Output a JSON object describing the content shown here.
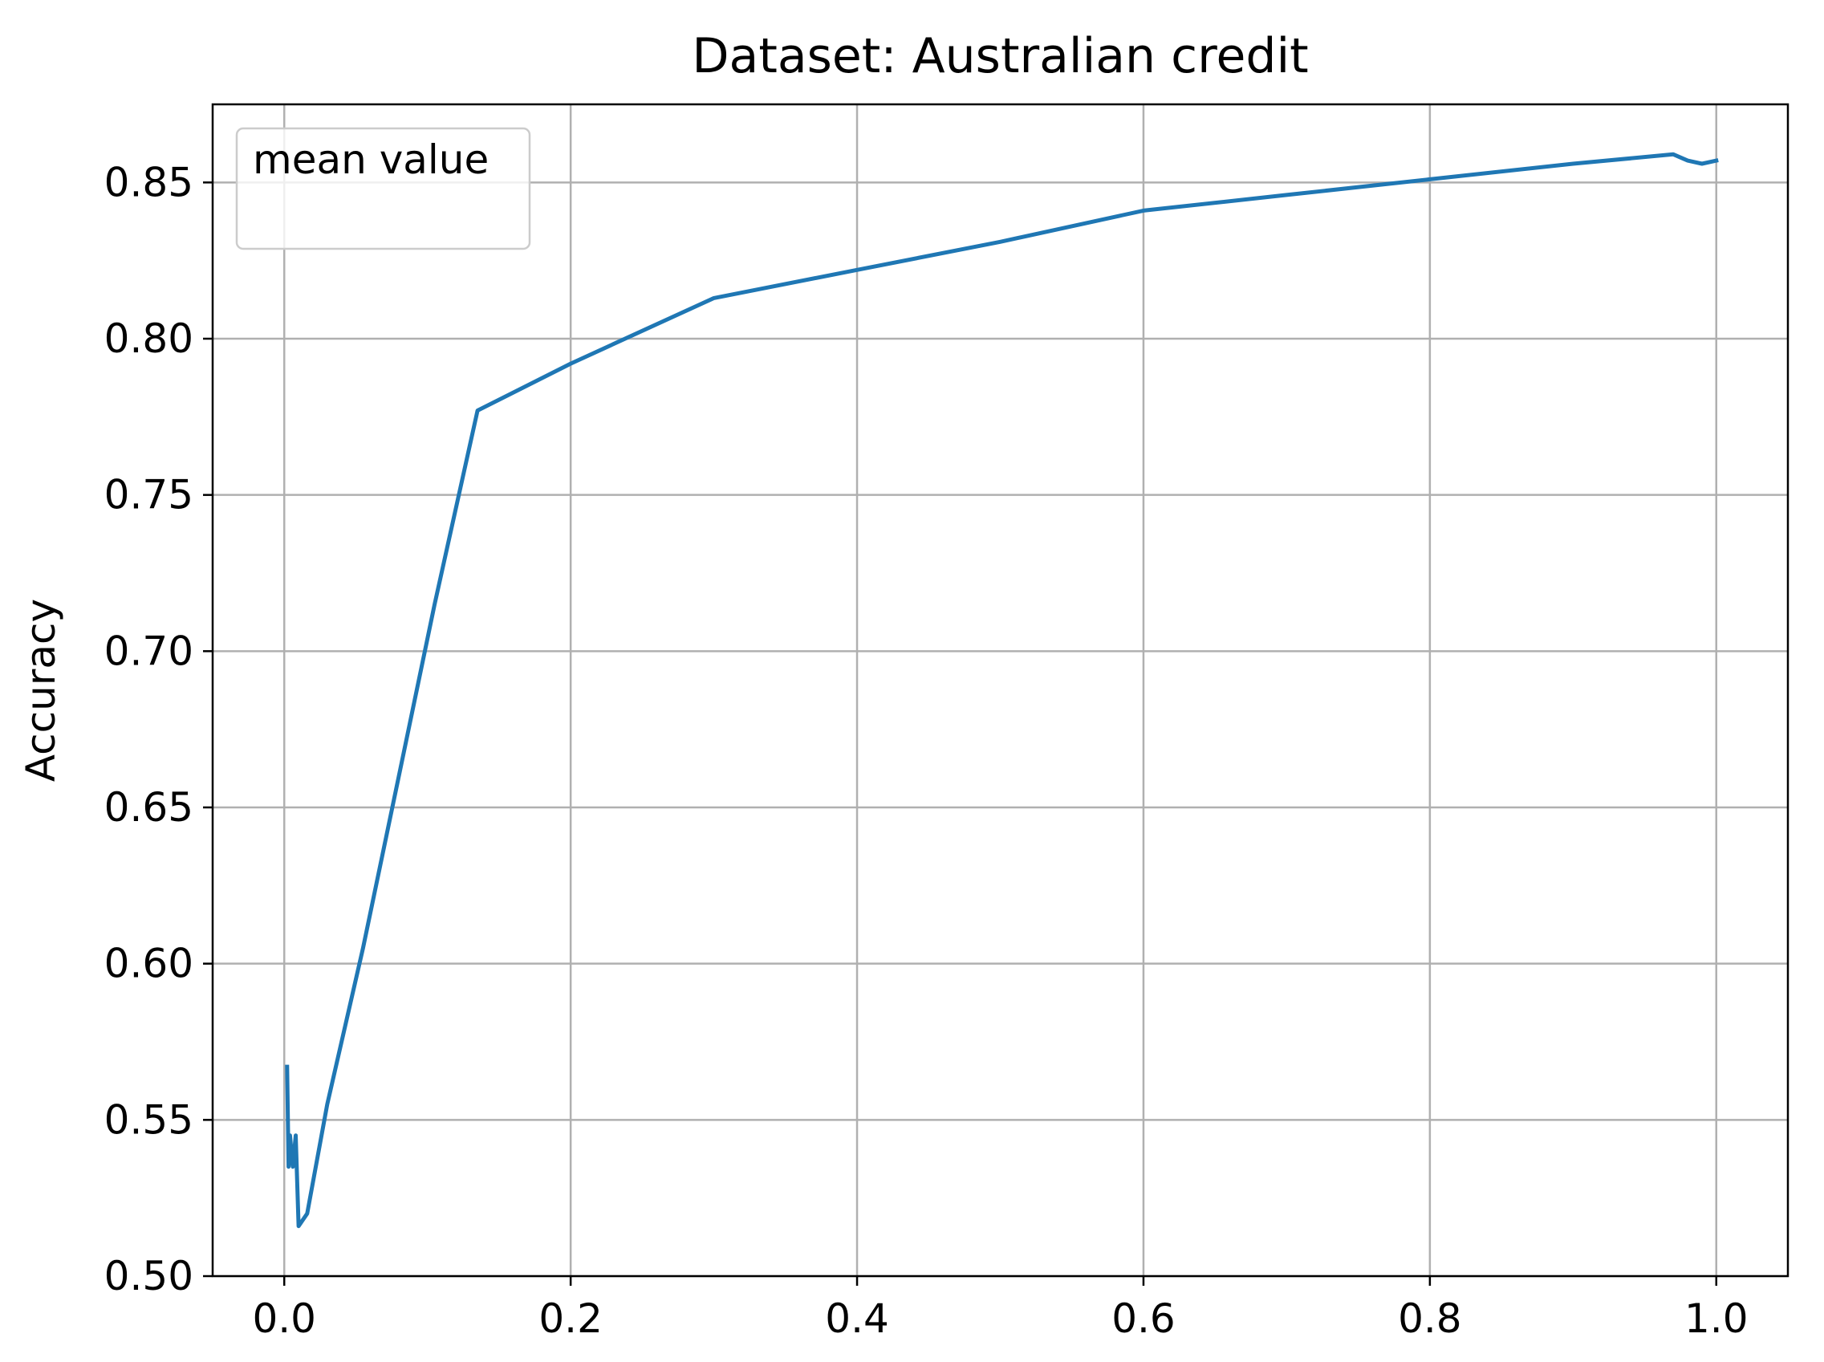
{
  "chart_data": {
    "type": "line",
    "title": "Dataset: Australian credit",
    "xlabel": "",
    "ylabel": "Accuracy",
    "xlim": [
      -0.05,
      1.05
    ],
    "ylim": [
      0.5,
      0.875
    ],
    "xticks": [
      0.0,
      0.2,
      0.4,
      0.6,
      0.8,
      1.0
    ],
    "xtick_labels": [
      "0.0",
      "0.2",
      "0.4",
      "0.6",
      "0.8",
      "1.0"
    ],
    "yticks": [
      0.5,
      0.55,
      0.6,
      0.65,
      0.7,
      0.75,
      0.8,
      0.85
    ],
    "ytick_labels": [
      "0.50",
      "0.55",
      "0.60",
      "0.65",
      "0.70",
      "0.75",
      "0.80",
      "0.85"
    ],
    "grid": true,
    "legend": {
      "title": "mean value",
      "placement": "top-left"
    },
    "series": [
      {
        "color": "#1f77b4",
        "x": [
          0.002,
          0.003,
          0.004,
          0.006,
          0.008,
          0.01,
          0.016,
          0.03,
          0.055,
          0.08,
          0.105,
          0.135,
          0.2,
          0.3,
          0.4,
          0.5,
          0.6,
          0.7,
          0.8,
          0.9,
          0.97,
          0.98,
          0.99,
          1.0
        ],
        "y": [
          0.567,
          0.535,
          0.545,
          0.535,
          0.545,
          0.516,
          0.52,
          0.555,
          0.605,
          0.66,
          0.715,
          0.777,
          0.792,
          0.813,
          0.822,
          0.831,
          0.841,
          0.846,
          0.851,
          0.856,
          0.859,
          0.857,
          0.856,
          0.857
        ]
      }
    ]
  }
}
